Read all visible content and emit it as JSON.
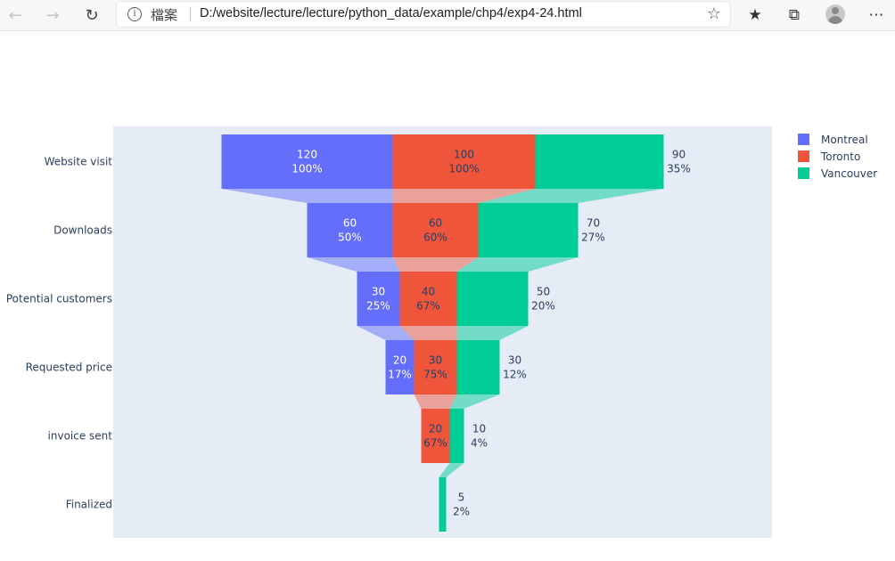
{
  "browser": {
    "scheme_label": "檔案",
    "url": "D:/website/lecture/lecture/python_data/example/chp4/exp4-24.html",
    "icons": [
      "back-icon",
      "forward-icon",
      "refresh-icon",
      "info-icon",
      "favorite-star-icon",
      "favorites-icon",
      "collections-icon",
      "profile-avatar",
      "more-icon"
    ]
  },
  "chart_data": {
    "type": "funnel",
    "categories": [
      "Website visit",
      "Downloads",
      "Potential customers",
      "Requested price",
      "invoice sent",
      "Finalized"
    ],
    "series": [
      {
        "name": "Montreal",
        "color": "#636efa",
        "values": [
          120,
          60,
          30,
          20,
          null,
          null
        ],
        "percents": [
          "100%",
          "50%",
          "25%",
          "17%",
          "",
          ""
        ]
      },
      {
        "name": "Toronto",
        "color": "#ef553b",
        "values": [
          100,
          60,
          40,
          30,
          20,
          null
        ],
        "percents": [
          "100%",
          "60%",
          "67%",
          "75%",
          "67%",
          ""
        ]
      },
      {
        "name": "Vancouver",
        "color": "#00cc96",
        "values": [
          90,
          70,
          50,
          30,
          10,
          5
        ],
        "percents": [
          "35%",
          "27%",
          "20%",
          "12%",
          "4%",
          "2%"
        ]
      }
    ],
    "legend_position": "top-right",
    "background": "#e5ecf6"
  }
}
